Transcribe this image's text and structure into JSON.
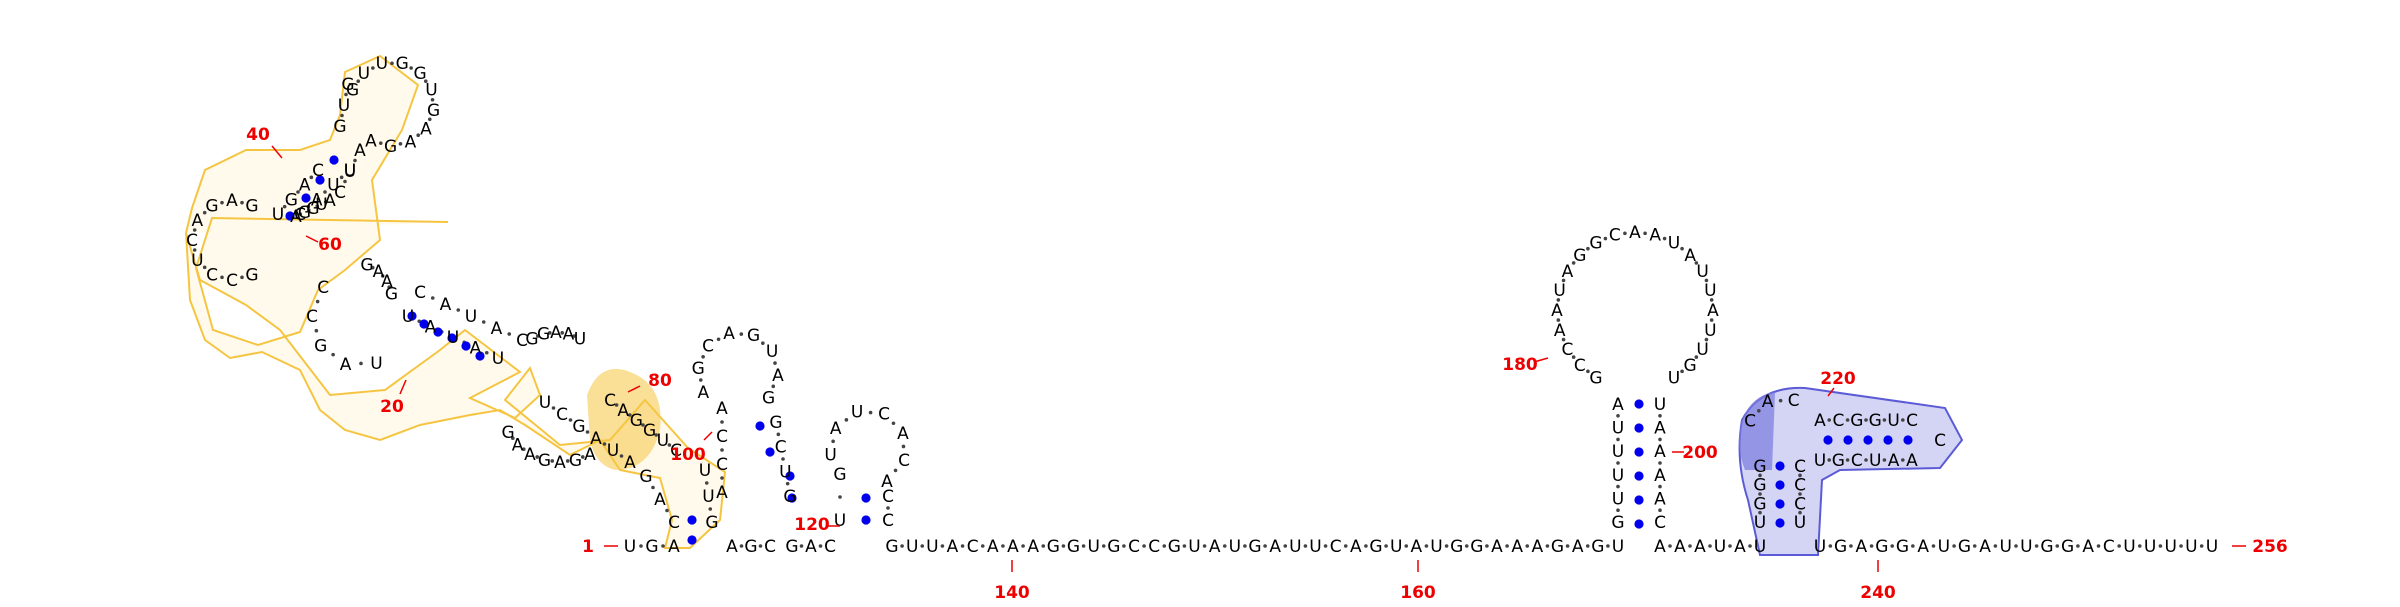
{
  "colors": {
    "nucleotide": "#000000",
    "backbone": "#444444",
    "base_pair": "#0000ee",
    "index": "#ee0000",
    "highlight_yellow": "#f5c542",
    "highlight_yellow_fill": "#fff6dc",
    "highlight_blue": "#5b5bd6",
    "highlight_blue_fill": "#c9c9f2"
  },
  "diagram": {
    "sequence_tail": "UGAGGAUGAUUGGACUUUUU",
    "sequence_linker": "GUUACAAAGGUGCCGUAUGAUUCAGUAUGGAAAGAGU",
    "index_labels": {
      "i1": "1",
      "i20": "20",
      "i40": "40",
      "i60": "60",
      "i80": "80",
      "i100": "100",
      "i120": "120",
      "i140": "140",
      "i160": "160",
      "i180": "180",
      "i200": "200",
      "i220": "220",
      "i240": "240",
      "i256": "256"
    },
    "stem1_left": "UGA",
    "stem2_hairpin_loop": "AGCAGUAG",
    "stem2_left": "ACCA",
    "stem3_loop": "UAUCACA",
    "long_hairpin_loop": "GCCAAUAGGCAAUAUUAUUGU",
    "long_hairpin_left": "AUUUUG",
    "long_hairpin_right": "UAAAAC",
    "blue_hairpin_top": "ACGGUC",
    "blue_hairpin_bottom": "UGCUAA",
    "blue_loop": "CAC",
    "blue_stem_left": "GGGU",
    "blue_stem_right": "CCCU"
  }
}
